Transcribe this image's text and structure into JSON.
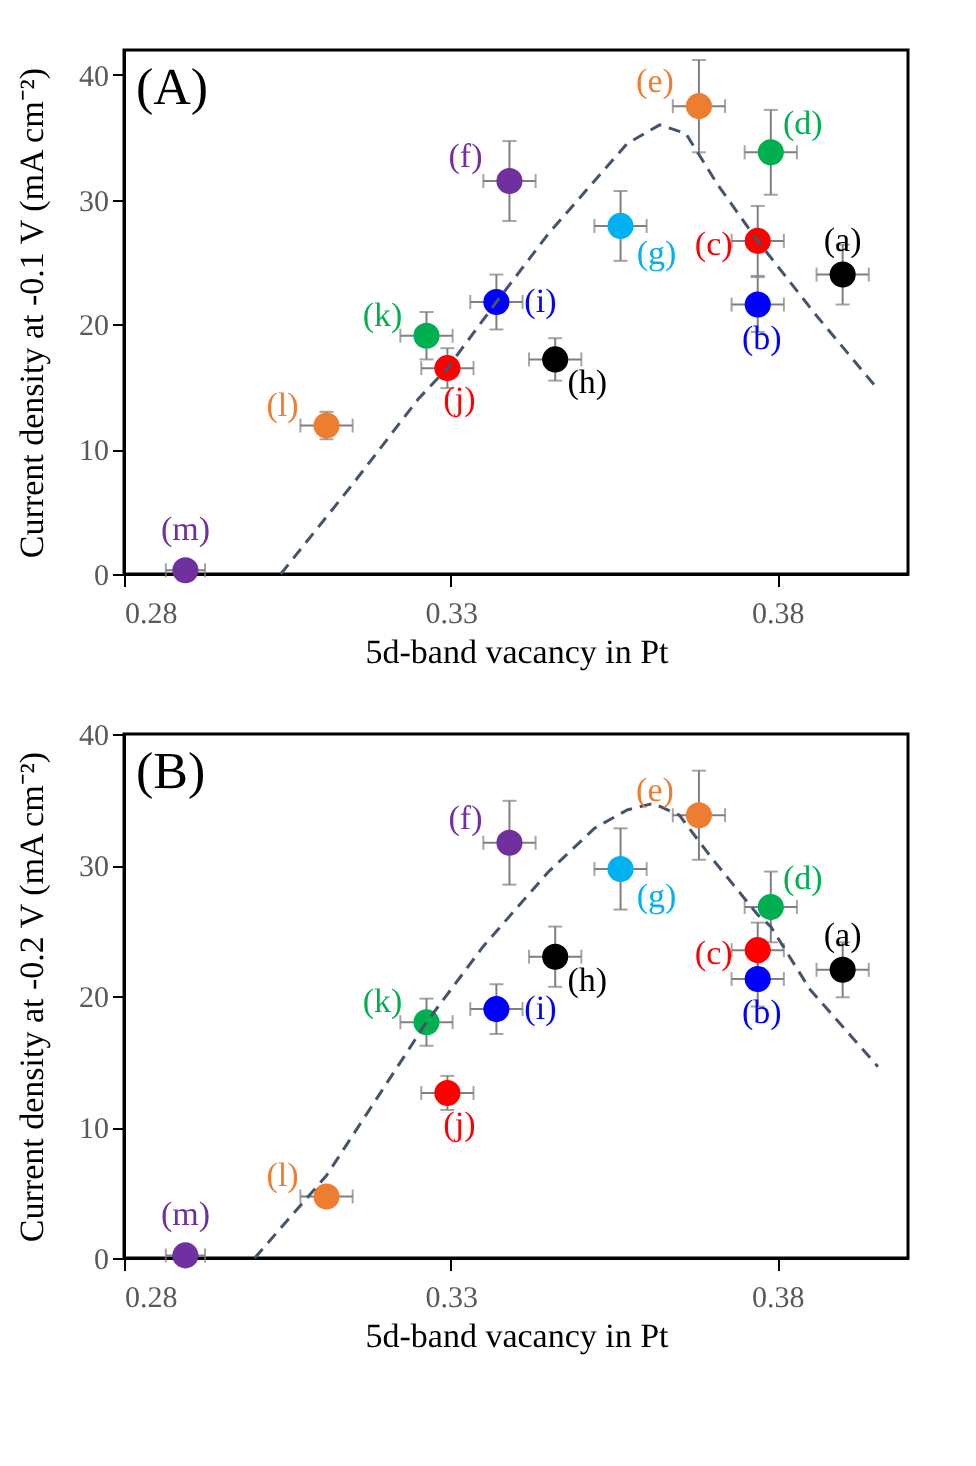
{
  "chart_data": [
    {
      "type": "scatter",
      "title": "(A)",
      "xlabel": "5d-band vacancy in Pt",
      "ylabel": "Current density at -0.1 V (mA cm⁻²)",
      "xlim": [
        0.28,
        0.4
      ],
      "xticks": [
        0.28,
        0.33,
        0.38
      ],
      "ylim": [
        0,
        42
      ],
      "yticks": [
        0,
        10,
        20,
        30,
        40
      ],
      "grid": false,
      "series": [
        {
          "type": "scatter",
          "marker": "circle",
          "x": [
            0.39,
            0.377,
            0.377,
            0.379,
            0.368,
            0.339,
            0.356,
            0.346,
            0.337,
            0.3295,
            0.3263,
            0.311,
            0.2894
          ],
          "values": [
            24.0,
            21.6,
            26.7,
            33.8,
            37.5,
            31.5,
            27.9,
            17.2,
            21.8,
            16.5,
            19.1,
            11.9,
            0.3
          ],
          "colors": [
            "#000000",
            "#0000ff",
            "#ff0000",
            "#00b050",
            "#ed7d31",
            "#7030a0",
            "#00b0f0",
            "#000000",
            "#0000ff",
            "#ff0000",
            "#00b050",
            "#ed7d31",
            "#7030a0"
          ],
          "errors": [
            2.4,
            2.2,
            2.8,
            3.4,
            3.7,
            3.2,
            2.8,
            1.7,
            2.2,
            1.6,
            1.9,
            1.1,
            null
          ],
          "xerrors": [
            0.004,
            0.004,
            0.004,
            0.004,
            0.004,
            0.004,
            0.004,
            0.004,
            0.004,
            0.004,
            0.004,
            0.004,
            0.003
          ]
        },
        {
          "type": "line",
          "marker": "none",
          "line_style": "dashed",
          "color": "#44546a",
          "x": [
            0.304,
            0.315,
            0.325,
            0.3295,
            0.337,
            0.345,
            0.352,
            0.357,
            0.362,
            0.366,
            0.371,
            0.377,
            0.386,
            0.3954
          ],
          "values": [
            0,
            7.2,
            14,
            16.5,
            21.8,
            27.3,
            31.5,
            34.5,
            36,
            35.3,
            31.1,
            26.7,
            20.7,
            14.8
          ]
        }
      ],
      "annotations": [
        {
          "text": "(a)",
          "x": 0.39,
          "y": 24.0
        },
        {
          "text": "(b)",
          "x": 0.377,
          "y": 21.6
        },
        {
          "text": "(c)",
          "x": 0.377,
          "y": 26.7
        },
        {
          "text": "(d)",
          "x": 0.379,
          "y": 33.8
        },
        {
          "text": "(e)",
          "x": 0.368,
          "y": 37.5
        },
        {
          "text": "(f)",
          "x": 0.339,
          "y": 31.5
        },
        {
          "text": "(g)",
          "x": 0.356,
          "y": 27.9
        },
        {
          "text": "(h)",
          "x": 0.346,
          "y": 17.2
        },
        {
          "text": "(i)",
          "x": 0.337,
          "y": 21.8
        },
        {
          "text": "(j)",
          "x": 0.3295,
          "y": 16.5
        },
        {
          "text": "(k)",
          "x": 0.3263,
          "y": 19.1
        },
        {
          "text": "(l)",
          "x": 0.311,
          "y": 11.9
        },
        {
          "text": "(m)",
          "x": 0.2894,
          "y": 0.3
        }
      ]
    },
    {
      "type": "scatter",
      "title": "(B)",
      "xlabel": "5d-band vacancy in Pt",
      "ylabel": "Current density at -0.2 V (mA cm⁻²)",
      "xlim": [
        0.28,
        0.4
      ],
      "xticks": [
        0.28,
        0.33,
        0.38
      ],
      "ylim": [
        0,
        40
      ],
      "yticks": [
        0,
        10,
        20,
        30,
        40
      ],
      "grid": false,
      "series": [
        {
          "type": "scatter",
          "marker": "circle",
          "x": [
            0.39,
            0.377,
            0.377,
            0.379,
            0.368,
            0.339,
            0.356,
            0.346,
            0.337,
            0.3295,
            0.3263,
            0.311,
            0.2894
          ],
          "values": [
            22.0,
            21.3,
            23.5,
            26.8,
            33.8,
            31.7,
            29.7,
            23.0,
            19.0,
            12.6,
            18.0,
            4.7,
            0.2
          ],
          "colors": [
            "#000000",
            "#0000ff",
            "#ff0000",
            "#00b050",
            "#ed7d31",
            "#7030a0",
            "#00b0f0",
            "#000000",
            "#0000ff",
            "#ff0000",
            "#00b050",
            "#ed7d31",
            "#7030a0"
          ],
          "errors": [
            2.1,
            2.1,
            2.1,
            2.7,
            3.4,
            3.2,
            3.1,
            2.3,
            1.9,
            1.3,
            1.8,
            null,
            null
          ],
          "xerrors": [
            0.004,
            0.004,
            0.004,
            0.004,
            0.004,
            0.004,
            0.004,
            0.004,
            0.004,
            0.004,
            0.004,
            0.004,
            0.003
          ]
        },
        {
          "type": "line",
          "marker": "none",
          "line_style": "dashed",
          "color": "#44546a",
          "x": [
            0.3,
            0.311,
            0.3263,
            0.335,
            0.345,
            0.352,
            0.357,
            0.361,
            0.365,
            0.37,
            0.377,
            0.379,
            0.385,
            0.3954
          ],
          "values": [
            0,
            6.3,
            18,
            23.8,
            29.5,
            32.8,
            34.2,
            34.7,
            33.8,
            30.5,
            26.2,
            25.3,
            20.5,
            14.6
          ]
        }
      ],
      "annotations": [
        {
          "text": "(a)",
          "x": 0.39,
          "y": 22.0
        },
        {
          "text": "(b)",
          "x": 0.377,
          "y": 21.3
        },
        {
          "text": "(c)",
          "x": 0.377,
          "y": 23.5
        },
        {
          "text": "(d)",
          "x": 0.379,
          "y": 26.8
        },
        {
          "text": "(e)",
          "x": 0.368,
          "y": 33.8
        },
        {
          "text": "(f)",
          "x": 0.339,
          "y": 31.7
        },
        {
          "text": "(g)",
          "x": 0.356,
          "y": 29.7
        },
        {
          "text": "(h)",
          "x": 0.346,
          "y": 23.0
        },
        {
          "text": "(i)",
          "x": 0.337,
          "y": 19.0
        },
        {
          "text": "(j)",
          "x": 0.3295,
          "y": 12.6
        },
        {
          "text": "(k)",
          "x": 0.3263,
          "y": 18.0
        },
        {
          "text": "(l)",
          "x": 0.311,
          "y": 4.7
        },
        {
          "text": "(m)",
          "x": 0.2894,
          "y": 0.2
        }
      ]
    }
  ]
}
